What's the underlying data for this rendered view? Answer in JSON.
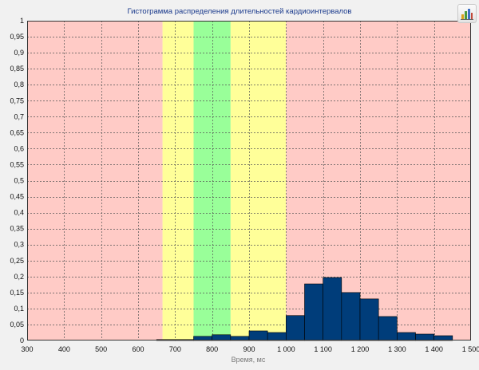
{
  "chart_data": {
    "type": "bar",
    "title": "Гистограмма распределения длительностей кардиоинтервалов",
    "xlabel": "Время, мс",
    "ylabel": "",
    "xlim": [
      300,
      1500
    ],
    "ylim": [
      0,
      1
    ],
    "grid": true,
    "x_ticks": [
      "300",
      "400",
      "500",
      "600",
      "700",
      "800",
      "900",
      "1 000",
      "1 100",
      "1 200",
      "1 300",
      "1 400",
      "1 500"
    ],
    "y_ticks": [
      "0",
      "0,05",
      "0,1",
      "0,15",
      "0,2",
      "0,25",
      "0,3",
      "0,35",
      "0,4",
      "0,45",
      "0,5",
      "0,55",
      "0,6",
      "0,65",
      "0,7",
      "0,75",
      "0,8",
      "0,85",
      "0,9",
      "0,95",
      "1"
    ],
    "zones": [
      {
        "from": 300,
        "to": 666,
        "color": "#ffcbc6"
      },
      {
        "from": 666,
        "to": 750,
        "color": "#ffff99"
      },
      {
        "from": 750,
        "to": 850,
        "color": "#99ff99"
      },
      {
        "from": 850,
        "to": 1000,
        "color": "#ffff99"
      },
      {
        "from": 1000,
        "to": 1500,
        "color": "#ffcbc6"
      }
    ],
    "bar_color": "#003d7a",
    "bins": [
      {
        "from": 650,
        "to": 700,
        "value": 0.003
      },
      {
        "from": 700,
        "to": 750,
        "value": 0.003
      },
      {
        "from": 750,
        "to": 800,
        "value": 0.013
      },
      {
        "from": 800,
        "to": 850,
        "value": 0.018
      },
      {
        "from": 850,
        "to": 900,
        "value": 0.013
      },
      {
        "from": 900,
        "to": 950,
        "value": 0.03
      },
      {
        "from": 950,
        "to": 1000,
        "value": 0.025
      },
      {
        "from": 1000,
        "to": 1050,
        "value": 0.078
      },
      {
        "from": 1050,
        "to": 1100,
        "value": 0.177
      },
      {
        "from": 1100,
        "to": 1150,
        "value": 0.197
      },
      {
        "from": 1150,
        "to": 1200,
        "value": 0.15
      },
      {
        "from": 1200,
        "to": 1250,
        "value": 0.13
      },
      {
        "from": 1250,
        "to": 1300,
        "value": 0.075
      },
      {
        "from": 1300,
        "to": 1350,
        "value": 0.025
      },
      {
        "from": 1350,
        "to": 1400,
        "value": 0.02
      },
      {
        "from": 1400,
        "to": 1450,
        "value": 0.015
      }
    ]
  },
  "toolbar": {
    "chart_button_icon": "bar-chart-icon"
  }
}
